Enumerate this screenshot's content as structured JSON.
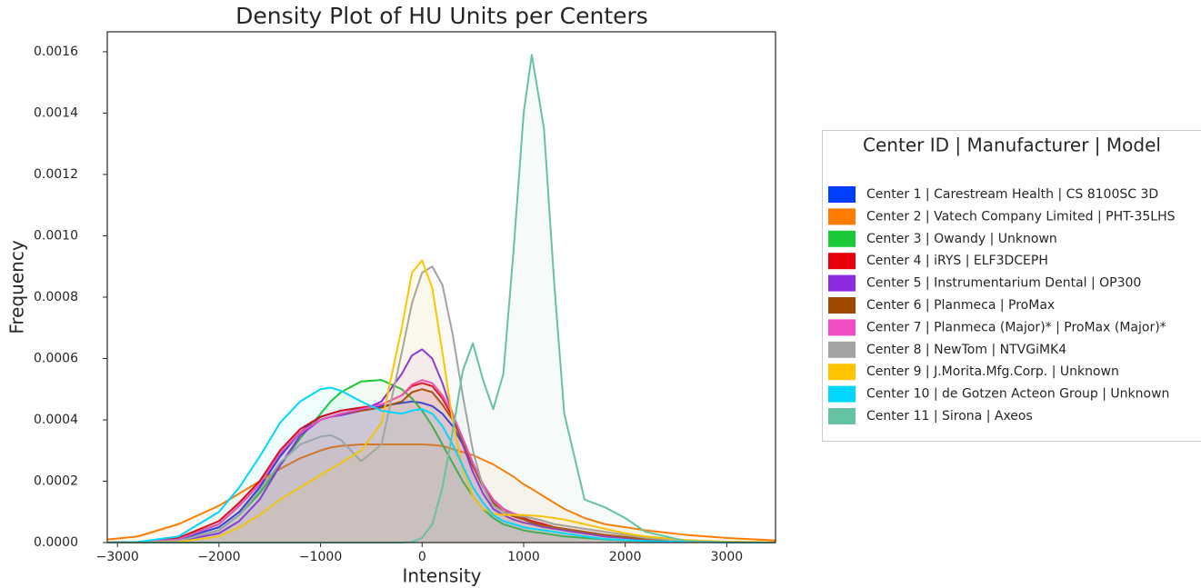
{
  "chart_data": {
    "type": "line",
    "title": "Density Plot of HU Units per Centers",
    "x_label": "Intensity",
    "y_label": "Frequency",
    "legend_title": "Center ID | Manufacturer | Model",
    "legend_loc": "outside right",
    "fill_under": true,
    "xlim": [
      -3100,
      3480
    ],
    "ylim": [
      0,
      0.001665
    ],
    "xticks": [
      {
        "value": -3000,
        "label": "−3000"
      },
      {
        "value": -2000,
        "label": "−2000"
      },
      {
        "value": -1000,
        "label": "−1000"
      },
      0,
      1000,
      2000,
      3000
    ],
    "yticks": [
      {
        "value": 0,
        "label": "0.0000"
      },
      0.0002,
      0.0004,
      0.0006,
      0.0008,
      {
        "value": 0.001,
        "label": "0.0010"
      },
      0.0012,
      0.0014,
      0.0016
    ],
    "x": [
      -3100,
      -2800,
      -2400,
      -2000,
      -1800,
      -1600,
      -1400,
      -1200,
      -1000,
      -900,
      -800,
      -600,
      -400,
      -200,
      -100,
      0,
      100,
      200,
      300,
      400,
      500,
      600,
      700,
      800,
      900,
      1000,
      1080,
      1200,
      1300,
      1400,
      1600,
      1800,
      2000,
      2200,
      2600,
      3000,
      3480
    ],
    "series": [
      {
        "name": "Center 1 | Carestream Health | CS 8100SC 3D",
        "color": "#023eff",
        "values": [
          0,
          2e-06,
          1e-05,
          5e-05,
          0.0001,
          0.00018,
          0.00028,
          0.00036,
          0.00041,
          0.00042,
          0.00043,
          0.00044,
          0.000445,
          0.000455,
          0.00046,
          0.000455,
          0.000445,
          0.00042,
          0.00038,
          0.00032,
          0.00025,
          0.00019,
          0.00014,
          0.00011,
          9e-05,
          8e-05,
          7e-05,
          6e-05,
          5e-05,
          4e-05,
          3e-05,
          2e-05,
          1.5e-05,
          1e-05,
          5e-06,
          2e-06,
          1e-06
        ]
      },
      {
        "name": "Center 2 | Vatech Company Limited | PHT-35LHS",
        "color": "#ff7c00",
        "values": [
          1e-05,
          2e-05,
          6e-05,
          0.00012,
          0.00016,
          0.0002,
          0.00024,
          0.000275,
          0.0003,
          0.00031,
          0.000315,
          0.00032,
          0.00032,
          0.00032,
          0.00032,
          0.00032,
          0.000318,
          0.000315,
          0.000305,
          0.000295,
          0.000285,
          0.00027,
          0.000255,
          0.000235,
          0.000215,
          0.00019,
          0.000175,
          0.00015,
          0.00013,
          0.00011,
          8e-05,
          6e-05,
          5e-05,
          4e-05,
          2.5e-05,
          1.5e-05,
          7e-06
        ]
      },
      {
        "name": "Center 3 | Owandy | Unknown",
        "color": "#1ac938",
        "values": [
          0,
          0,
          5e-06,
          4e-05,
          9e-05,
          0.00016,
          0.00025,
          0.00034,
          0.00042,
          0.00046,
          0.00049,
          0.000525,
          0.00053,
          0.0005,
          0.00047,
          0.00043,
          0.00038,
          0.00032,
          0.00026,
          0.0002,
          0.00015,
          0.00011,
          8e-05,
          6e-05,
          5e-05,
          4e-05,
          3.5e-05,
          3e-05,
          2.5e-05,
          2e-05,
          1.5e-05,
          1e-05,
          7e-06,
          5e-06,
          2e-06,
          1e-06,
          0
        ]
      },
      {
        "name": "Center 4 | iRYS | ELF3DCEPH",
        "color": "#e8000b",
        "values": [
          0,
          2e-06,
          1.5e-05,
          7e-05,
          0.00013,
          0.0002,
          0.0003,
          0.00037,
          0.00041,
          0.00042,
          0.00043,
          0.00044,
          0.00045,
          0.00048,
          0.00051,
          0.00052,
          0.00051,
          0.00047,
          0.00041,
          0.00034,
          0.00026,
          0.00019,
          0.00014,
          0.00011,
          9e-05,
          8e-05,
          7e-05,
          6e-05,
          5e-05,
          4.5e-05,
          3.5e-05,
          2.5e-05,
          1.8e-05,
          1.2e-05,
          5e-06,
          2e-06,
          1e-06
        ]
      },
      {
        "name": "Center 5 | Instrumentarium Dental | OP300",
        "color": "#8b2be2",
        "values": [
          0,
          0,
          5e-06,
          3e-05,
          7e-05,
          0.00014,
          0.00025,
          0.00035,
          0.0004,
          0.00041,
          0.000415,
          0.00043,
          0.00046,
          0.00055,
          0.00061,
          0.00063,
          0.0006,
          0.00052,
          0.00042,
          0.00032,
          0.00023,
          0.00016,
          0.00011,
          9e-05,
          7.5e-05,
          6.5e-05,
          6e-05,
          5e-05,
          4.5e-05,
          4e-05,
          3e-05,
          2e-05,
          1.5e-05,
          1e-05,
          4e-06,
          1e-06,
          0
        ]
      },
      {
        "name": "Center 6 | Planmeca | ProMax",
        "color": "#9f4800",
        "values": [
          0,
          2e-06,
          1.2e-05,
          6e-05,
          0.00012,
          0.00019,
          0.00029,
          0.00036,
          0.0004,
          0.00041,
          0.00042,
          0.00043,
          0.00044,
          0.00046,
          0.00049,
          0.0005,
          0.00049,
          0.00045,
          0.0004,
          0.00033,
          0.00025,
          0.00018,
          0.00013,
          0.0001,
          8.5e-05,
          7.5e-05,
          6.5e-05,
          5.5e-05,
          5e-05,
          4.5e-05,
          3.5e-05,
          2.5e-05,
          1.8e-05,
          1.2e-05,
          5e-06,
          2e-06,
          1e-06
        ]
      },
      {
        "name": "Center 7 | Planmeca (Major)* | ProMax (Major)*",
        "color": "#f14cc1",
        "values": [
          0,
          1e-06,
          1e-05,
          6e-05,
          0.00012,
          0.00019,
          0.00029,
          0.00036,
          0.0004,
          0.00041,
          0.00042,
          0.000435,
          0.00045,
          0.00048,
          0.000515,
          0.00053,
          0.00052,
          0.00048,
          0.00042,
          0.00034,
          0.00026,
          0.00019,
          0.00014,
          0.00011,
          9.5e-05,
          8.5e-05,
          8e-05,
          7e-05,
          6e-05,
          5.5e-05,
          4.5e-05,
          3.5e-05,
          2.5e-05,
          1.8e-05,
          7e-06,
          2e-06,
          1e-06
        ]
      },
      {
        "name": "Center 8 | NewTom | NTVGiMK4",
        "color": "#a3a3a3",
        "values": [
          0,
          0,
          5e-06,
          4e-05,
          9e-05,
          0.00017,
          0.00026,
          0.00032,
          0.000345,
          0.00035,
          0.000335,
          0.000265,
          0.00032,
          0.00062,
          0.00078,
          0.00088,
          0.0009,
          0.00084,
          0.00068,
          0.00048,
          0.0003,
          0.00018,
          0.00012,
          0.0001,
          9e-05,
          8.5e-05,
          8e-05,
          7e-05,
          6e-05,
          5.5e-05,
          4.5e-05,
          3.5e-05,
          2.5e-05,
          1.5e-05,
          5e-06,
          2e-06,
          0
        ]
      },
      {
        "name": "Center 9 | J.Morita.Mfg.Corp. | Unknown",
        "color": "#ffc400",
        "values": [
          0,
          0,
          2e-06,
          2e-05,
          5e-05,
          9e-05,
          0.00014,
          0.00018,
          0.00022,
          0.00024,
          0.00026,
          0.0003,
          0.00039,
          0.0007,
          0.00088,
          0.00092,
          0.00083,
          0.00062,
          0.0004,
          0.00024,
          0.00015,
          0.00011,
          9.5e-05,
          9e-05,
          9e-05,
          9e-05,
          8.8e-05,
          8.5e-05,
          8e-05,
          7.5e-05,
          6e-05,
          4.5e-05,
          3e-05,
          2e-05,
          8e-06,
          3e-06,
          1e-06
        ]
      },
      {
        "name": "Center 10 | de Gotzen Acteon Group | Unknown",
        "color": "#00d7ff",
        "values": [
          0,
          2e-06,
          2e-05,
          0.0001,
          0.00018,
          0.00028,
          0.00039,
          0.00046,
          0.0005,
          0.000505,
          0.000495,
          0.00046,
          0.00043,
          0.00042,
          0.00043,
          0.000435,
          0.00042,
          0.00038,
          0.00032,
          0.00025,
          0.00018,
          0.00013,
          9e-05,
          7e-05,
          6e-05,
          5e-05,
          4.5e-05,
          4e-05,
          3.5e-05,
          3e-05,
          2e-05,
          1.2e-05,
          8e-06,
          5e-06,
          2e-06,
          0,
          0
        ]
      },
      {
        "name": "Center 11 | Sirona | Axeos",
        "color": "#66c2a5",
        "values": [
          0,
          0,
          0,
          0,
          0,
          0,
          0,
          0,
          0,
          0,
          0,
          0,
          0,
          0,
          2e-06,
          1.5e-05,
          6e-05,
          0.00018,
          0.00036,
          0.00056,
          0.00065,
          0.00053,
          0.000435,
          0.00055,
          0.00095,
          0.0014,
          0.00159,
          0.00135,
          0.00085,
          0.00042,
          0.00014,
          0.000115,
          8e-05,
          3.5e-05,
          5e-06,
          1e-06,
          0
        ]
      }
    ]
  }
}
